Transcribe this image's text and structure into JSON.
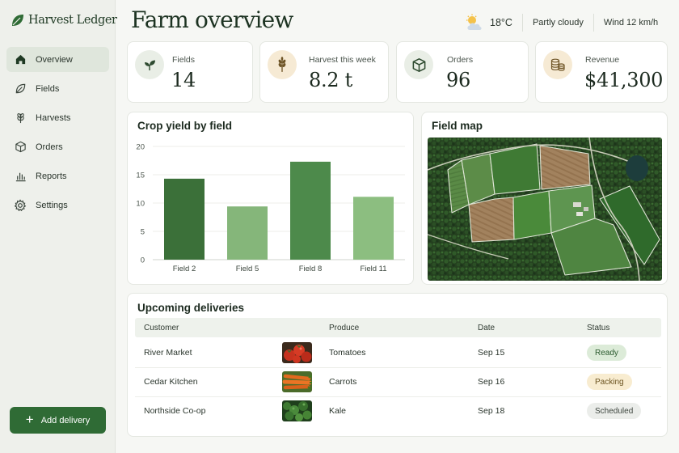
{
  "app": {
    "name": "Harvest Ledger"
  },
  "sidebar": {
    "items": [
      {
        "label": "Overview",
        "icon": "home-icon",
        "active": true
      },
      {
        "label": "Fields",
        "icon": "leaf-icon"
      },
      {
        "label": "Harvests",
        "icon": "wheat-icon"
      },
      {
        "label": "Orders",
        "icon": "box-icon"
      },
      {
        "label": "Reports",
        "icon": "bar-chart-icon"
      },
      {
        "label": "Settings",
        "icon": "gear-icon"
      }
    ],
    "add_button": "Add delivery"
  },
  "header": {
    "title": "Farm overview",
    "weather": {
      "icon": "partly-cloudy-icon",
      "temp": "18°C",
      "condition": "Partly cloudy",
      "wind": "Wind 12 km/h"
    }
  },
  "stats": [
    {
      "label": "Fields",
      "value": "14",
      "icon": "sprout-icon",
      "icon_bg": "#e9eee6"
    },
    {
      "label": "Harvest this week",
      "value": "8.2 t",
      "icon": "wheat-icon",
      "icon_bg": "#f6ead4"
    },
    {
      "label": "Orders",
      "value": "96",
      "icon": "box-icon",
      "icon_bg": "#e9eee6"
    },
    {
      "label": "Revenue",
      "value": "$41,300",
      "icon": "coins-icon",
      "icon_bg": "#f6ead4"
    }
  ],
  "chart_card": {
    "title": "Crop yield by field"
  },
  "chart_data": {
    "type": "bar",
    "title": "Crop yield by field",
    "categories": [
      "Field 2",
      "Field 5",
      "Field 8",
      "Field 11"
    ],
    "values": [
      14.3,
      9.4,
      17.3,
      11.1
    ],
    "colors": [
      "#3b7039",
      "#85b67a",
      "#4d8a4b",
      "#8cbe80"
    ],
    "ylim": [
      0,
      20
    ],
    "yticks": [
      0,
      5,
      10,
      15,
      20
    ],
    "grid": true
  },
  "map_card": {
    "title": "Field map"
  },
  "deliveries": {
    "title": "Upcoming deliveries",
    "columns": [
      "Customer",
      "Produce",
      "Date",
      "Status"
    ],
    "rows": [
      {
        "customer": "River Market",
        "produce": "Tomatoes",
        "date": "Sep 15",
        "status": "Ready",
        "thumb": "tomatoes"
      },
      {
        "customer": "Cedar Kitchen",
        "produce": "Carrots",
        "date": "Sep 16",
        "status": "Packing",
        "thumb": "carrots"
      },
      {
        "customer": "Northside Co-op",
        "produce": "Kale",
        "date": "Sep 18",
        "status": "Scheduled",
        "thumb": "kale"
      }
    ],
    "status_colors": {
      "Ready": {
        "bg": "#dcebd8",
        "fg": "#2b5a2e"
      },
      "Packing": {
        "bg": "#f8ecd0",
        "fg": "#6b5320"
      },
      "Scheduled": {
        "bg": "#ebedea",
        "fg": "#3e463f"
      }
    }
  },
  "colors": {
    "accent": "#2f6b35",
    "sidebar_bg": "#eef0eb",
    "page_bg": "#f6f7f4"
  }
}
